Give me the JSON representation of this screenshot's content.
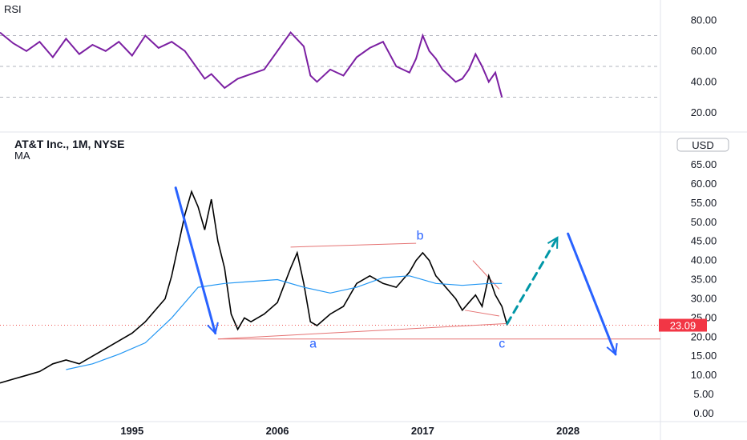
{
  "chart_data": [
    {
      "type": "line",
      "title": "RSI",
      "series": [
        {
          "name": "",
          "color": "#7b1fa2",
          "x": [
            1985.0,
            1986.0,
            1987.0,
            1988.0,
            1989.0,
            1990.0,
            1991.0,
            1992.0,
            1993.0,
            1994.0,
            1995.0,
            1996.0,
            1997.0,
            1998.0,
            1999.0,
            2000.0,
            2000.5,
            2001.0,
            2002.0,
            2003.0,
            2004.0,
            2005.0,
            2006.0,
            2007.0,
            2008.0,
            2008.5,
            2009.0,
            2010.0,
            2011.0,
            2012.0,
            2013.0,
            2014.0,
            2015.0,
            2016.0,
            2016.5,
            2017.0,
            2017.5,
            2018.0,
            2018.5,
            2019.0,
            2019.5,
            2020.0,
            2020.5,
            2021.0,
            2021.5,
            2022.0,
            2022.5,
            2023.0
          ],
          "values": [
            72,
            65,
            60,
            66,
            56,
            68,
            58,
            64,
            60,
            66,
            57,
            70,
            62,
            66,
            60,
            48,
            42,
            45,
            36,
            42,
            45,
            48,
            60,
            72,
            63,
            44,
            40,
            48,
            44,
            56,
            62,
            66,
            50,
            46,
            55,
            70,
            60,
            55,
            48,
            44,
            40,
            42,
            48,
            58,
            50,
            40,
            46,
            30
          ]
        }
      ],
      "yticks": [
        "80.00",
        "60.00",
        "40.00",
        "20.00"
      ],
      "guides": [
        70,
        50,
        30
      ],
      "ylim": [
        10,
        90
      ]
    },
    {
      "type": "line",
      "title": "AT&T Inc., 1M, NYSE",
      "subtitle": "MA",
      "currency": "USD",
      "last_price": "23.09",
      "last_value": 23.09,
      "yticks": [
        "65.00",
        "60.00",
        "55.00",
        "50.00",
        "45.00",
        "40.00",
        "35.00",
        "30.00",
        "25.00",
        "20.00",
        "15.00",
        "10.00",
        "5.00",
        "0.00"
      ],
      "ylim": [
        0,
        65
      ],
      "xticks": [
        "1995",
        "2006",
        "2017",
        "2028"
      ],
      "xtick_values": [
        1995,
        2006,
        2017,
        2028
      ],
      "xlim": [
        1985,
        2035
      ],
      "series": [
        {
          "name": "",
          "color": "#000000",
          "x": [
            1985.0,
            1986.0,
            1987.0,
            1988.0,
            1989.0,
            1990.0,
            1991.0,
            1992.0,
            1993.0,
            1994.0,
            1995.0,
            1996.0,
            1997.0,
            1997.5,
            1998.0,
            1998.5,
            1999.0,
            1999.5,
            2000.0,
            2000.5,
            2001.0,
            2001.5,
            2002.0,
            2002.5,
            2003.0,
            2003.5,
            2004.0,
            2005.0,
            2006.0,
            2007.0,
            2007.5,
            2008.0,
            2008.5,
            2009.0,
            2010.0,
            2011.0,
            2012.0,
            2013.0,
            2014.0,
            2015.0,
            2016.0,
            2016.5,
            2017.0,
            2017.5,
            2018.0,
            2018.5,
            2019.0,
            2019.5,
            2020.0,
            2020.5,
            2021.0,
            2021.5,
            2022.0,
            2022.5,
            2023.0,
            2023.4
          ],
          "values": [
            8,
            9,
            10,
            11,
            13,
            14,
            13,
            15,
            17,
            19,
            21,
            24,
            28,
            30,
            36,
            44,
            52,
            58,
            54,
            48,
            56,
            45,
            38,
            26,
            22,
            25,
            24,
            26,
            29,
            38,
            42,
            34,
            24,
            23,
            26,
            28,
            34,
            36,
            34,
            33,
            37,
            40,
            42,
            40,
            36,
            34,
            32,
            30,
            27,
            29,
            31,
            28,
            36,
            31,
            28,
            23.09
          ]
        },
        {
          "name": "MA",
          "color": "#2196f3",
          "x": [
            1990,
            1992,
            1994,
            1996,
            1998,
            2000,
            2002,
            2004,
            2006,
            2008,
            2010,
            2012,
            2014,
            2016,
            2018,
            2020,
            2022,
            2023
          ],
          "values": [
            11.5,
            13,
            15.5,
            18.5,
            25,
            33,
            34,
            34.5,
            35,
            33,
            31.5,
            33,
            35.5,
            36,
            34,
            33.5,
            34,
            34
          ]
        }
      ],
      "annotations": {
        "wave_labels": [
          {
            "text": "a",
            "x": 2008.7,
            "y": 19.5
          },
          {
            "text": "b",
            "x": 2016.8,
            "y": 45.5
          },
          {
            "text": "c",
            "x": 2023.0,
            "y": 19.5
          }
        ],
        "horizontal_support": 19.5,
        "support_color": "#e57373",
        "down_arrow_1": {
          "from": [
            1998.3,
            59
          ],
          "to": [
            2001.3,
            21
          ],
          "color": "#2962ff"
        },
        "projected_up": {
          "from": [
            2023.4,
            23.5
          ],
          "to": [
            2027.2,
            46
          ],
          "color": "#0097a7"
        },
        "projected_down": {
          "from": [
            2028.0,
            47
          ],
          "to": [
            2031.6,
            15.5
          ],
          "color": "#2962ff"
        },
        "channel": [
          {
            "from": [
              2001.5,
              19.5
            ],
            "to": [
              2023.3,
              23.5
            ]
          },
          {
            "from": [
              2007.0,
              43.5
            ],
            "to": [
              2016.5,
              44.5
            ]
          },
          {
            "from": [
              2020.8,
              40
            ],
            "to": [
              2022.8,
              32.5
            ]
          },
          {
            "from": [
              2020.2,
              27
            ],
            "to": [
              2022.8,
              25.5
            ]
          }
        ]
      }
    }
  ]
}
